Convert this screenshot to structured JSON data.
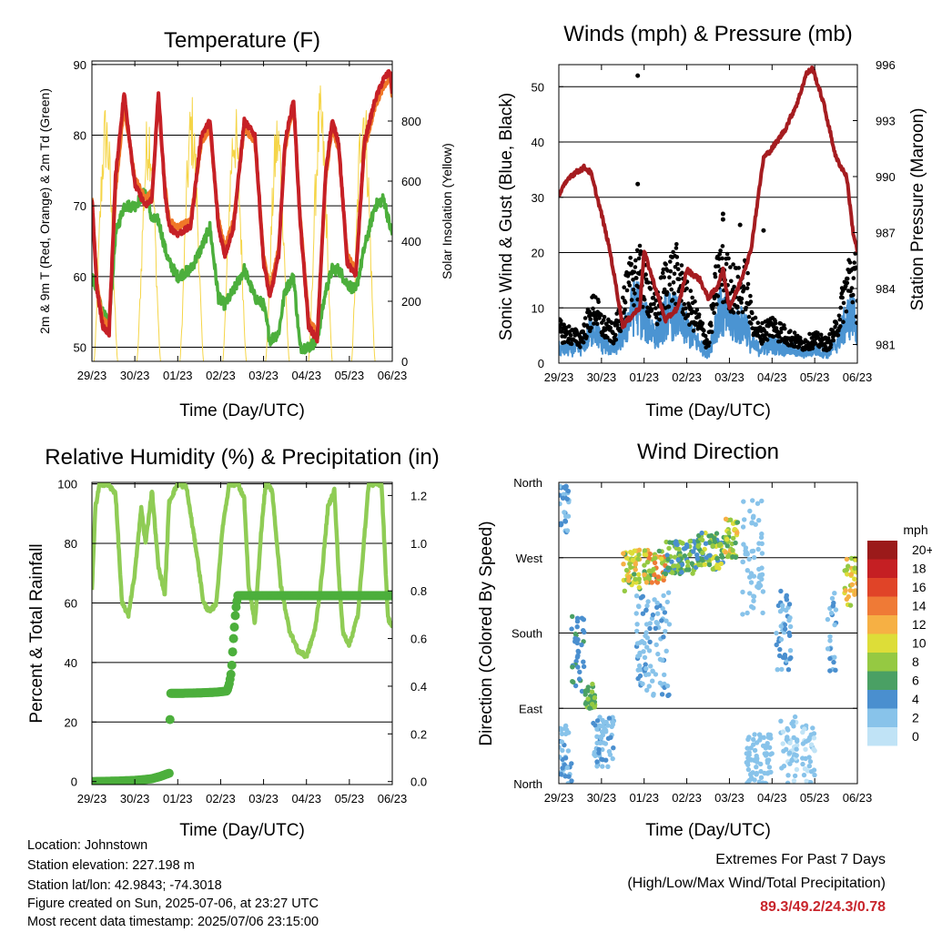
{
  "colors": {
    "red": "#c62026",
    "orange": "#f07828",
    "green": "#4caf3c",
    "light_green": "#8fcc55",
    "yellow": "#f5d548",
    "blue": "#4b94d2",
    "black": "#000000",
    "maroon": "#a51c20",
    "title_red": "#c8252c"
  },
  "x_ticks": [
    "29/23",
    "30/23",
    "01/23",
    "02/23",
    "03/23",
    "04/23",
    "05/23",
    "06/23"
  ],
  "chart_data": [
    {
      "id": "temperature",
      "type": "line",
      "title": "Temperature (F)",
      "xlabel": "Time (Day/UTC)",
      "ylabel": "2m & 9m T (Red, Orange) & 2m Td (Green)",
      "ylabel_right": "Solar Insolation (Yellow)",
      "ylim": [
        48,
        90.5
      ],
      "yticks": [
        50,
        60,
        70,
        80,
        90
      ],
      "ylim_right": [
        0,
        1000
      ],
      "yticks_right": [
        0,
        200,
        400,
        600,
        800
      ],
      "x": [
        0,
        0.12,
        0.25,
        0.4,
        0.55,
        0.75,
        1.0,
        1.25,
        1.4,
        1.55,
        1.7,
        1.8,
        2.0,
        2.3,
        2.55,
        2.75,
        2.95,
        3.1,
        3.3,
        3.55,
        3.8,
        4.0,
        4.15,
        4.35,
        4.5,
        4.7,
        4.85,
        5.05,
        5.25,
        5.45,
        5.6,
        5.75,
        5.95,
        6.15,
        6.35,
        6.6,
        6.8,
        6.95,
        7.0
      ],
      "series": [
        {
          "name": "2m T",
          "color": "red",
          "values": [
            71,
            58,
            53,
            52,
            74,
            86,
            73,
            70,
            71,
            86,
            72,
            67,
            66,
            67,
            80,
            82,
            67,
            63,
            67,
            82,
            80,
            62,
            57,
            63,
            79,
            85,
            68,
            53,
            51,
            75,
            82,
            79,
            62,
            60,
            79,
            85,
            88,
            89,
            86
          ]
        },
        {
          "name": "9m T",
          "color": "orange",
          "values": [
            71,
            59,
            54,
            53,
            72,
            84,
            74,
            71,
            72,
            85,
            73,
            68,
            67,
            68,
            79,
            81,
            68,
            64,
            68,
            81,
            79,
            63,
            58,
            64,
            78,
            84,
            69,
            54,
            52,
            74,
            81,
            78,
            63,
            61,
            78,
            84,
            87,
            88,
            85
          ]
        },
        {
          "name": "2m Td",
          "color": "green",
          "values": [
            60,
            58,
            55,
            53,
            66,
            70,
            70,
            72,
            68,
            68,
            64,
            62,
            60,
            61,
            64,
            67,
            57,
            56,
            58,
            61,
            57,
            56,
            51,
            52,
            58,
            60,
            50,
            50,
            51,
            58,
            61,
            61,
            59,
            58,
            64,
            70,
            71,
            67,
            66
          ]
        }
      ],
      "insolation": {
        "color": "yellow",
        "days": [
          0,
          1,
          2,
          3,
          4,
          5,
          6
        ],
        "peaks": [
          880,
          870,
          900,
          880,
          850,
          920,
          960
        ]
      }
    },
    {
      "id": "winds",
      "type": "scatter",
      "title": "Winds (mph) & Pressure (mb)",
      "xlabel": "Time (Day/UTC)",
      "ylabel": "Sonic Wind & Gust (Blue, Black)",
      "ylabel_right": "Station Pressure (Maroon)",
      "ylim": [
        0,
        54
      ],
      "yticks": [
        0,
        10,
        20,
        30,
        40,
        50
      ],
      "ylim_right": [
        980,
        996
      ],
      "yticks_right": [
        981,
        984,
        987,
        990,
        993,
        996
      ],
      "wind_series": {
        "name": "Sonic Wind",
        "color": "blue"
      },
      "gust_series": {
        "name": "Gust",
        "color": "black"
      },
      "wind_x": [
        0,
        0.5,
        0.85,
        1.0,
        1.3,
        1.5,
        1.8,
        2.0,
        2.3,
        2.5,
        2.75,
        3.0,
        3.3,
        3.5,
        3.75,
        4.0,
        4.2,
        4.4,
        4.5,
        4.7,
        5.0,
        5.3,
        5.5,
        5.7,
        6.0,
        6.3,
        6.5,
        6.8,
        6.95,
        7.0
      ],
      "wind": [
        3,
        3,
        8,
        4,
        3,
        6,
        13,
        9,
        6,
        10,
        10,
        7,
        4,
        2,
        11,
        9,
        8,
        8,
        4,
        3,
        4,
        3,
        3,
        2,
        3,
        2,
        4,
        10,
        10,
        6
      ],
      "gust": [
        7,
        5,
        12,
        8,
        6,
        12,
        20,
        17,
        11,
        17,
        19,
        13,
        8,
        4,
        20,
        17,
        15,
        17,
        10,
        6,
        8,
        6,
        5,
        4,
        5,
        4,
        7,
        18,
        18,
        12
      ],
      "gust_outliers": [
        [
          1.85,
          52
        ],
        [
          1.85,
          32.4
        ],
        [
          3.85,
          27
        ],
        [
          3.85,
          26
        ],
        [
          4.25,
          25
        ],
        [
          4.8,
          24
        ]
      ],
      "pressure_x": [
        0,
        0.25,
        0.6,
        0.75,
        1.0,
        1.2,
        1.5,
        1.9,
        2.0,
        2.2,
        2.5,
        2.8,
        3.0,
        3.3,
        3.5,
        3.7,
        3.85,
        4.0,
        4.2,
        4.5,
        4.8,
        5.0,
        5.3,
        5.6,
        5.8,
        5.95,
        6.2,
        6.5,
        6.75,
        6.9,
        7.0
      ],
      "pressure": [
        989,
        990,
        990.5,
        990.2,
        988,
        986,
        982,
        983,
        986,
        984.5,
        982.3,
        983,
        985,
        984.5,
        983.5,
        984,
        985,
        983,
        984,
        986,
        991,
        991.5,
        992.5,
        994,
        995.5,
        995.8,
        994,
        991,
        990,
        987,
        986
      ]
    },
    {
      "id": "humidity",
      "type": "line",
      "title": "Relative Humidity (%) & Precipitation (in)",
      "xlabel": "Time (Day/UTC)",
      "ylabel": "Percent & Total Rainfall",
      "ylim": [
        -1,
        100.5
      ],
      "yticks": [
        0,
        20,
        40,
        60,
        80,
        100
      ],
      "ylim_right": [
        -0.0125,
        1.255
      ],
      "yticks_right": [
        "0.0",
        "0.2",
        "0.4",
        "0.6",
        "0.8",
        "1.0",
        "1.2"
      ],
      "rh": {
        "name": "Relative Humidity",
        "color": "light_green",
        "x": [
          0,
          0.08,
          0.18,
          0.35,
          0.55,
          0.7,
          0.85,
          1.0,
          1.15,
          1.25,
          1.4,
          1.55,
          1.7,
          1.8,
          2.0,
          2.2,
          2.45,
          2.6,
          2.75,
          2.9,
          3.05,
          3.2,
          3.4,
          3.55,
          3.65,
          3.8,
          3.95,
          4.05,
          4.2,
          4.4,
          4.6,
          4.8,
          5.0,
          5.2,
          5.35,
          5.5,
          5.65,
          5.75,
          5.85,
          6.0,
          6.2,
          6.45,
          6.6,
          6.75,
          6.9,
          7.0
        ],
        "values": [
          64,
          92,
          100,
          100,
          97,
          60,
          56,
          70,
          92,
          80,
          98,
          72,
          63,
          94,
          100,
          99,
          76,
          60,
          57,
          60,
          86,
          100,
          100,
          95,
          66,
          53,
          85,
          100,
          98,
          66,
          51,
          44,
          42,
          51,
          68,
          92,
          98,
          70,
          50,
          46,
          56,
          100,
          100,
          100,
          55,
          52
        ]
      },
      "precip": {
        "name": "Total Precipitation",
        "color": "green",
        "x": [
          0,
          0.6,
          1.0,
          1.2,
          1.4,
          1.6,
          1.72,
          1.8,
          1.82,
          1.84,
          2.0,
          2.5,
          2.9,
          3.15,
          3.2,
          3.25,
          3.3,
          3.35,
          3.4,
          4.0,
          5.0,
          6.0,
          7.0
        ],
        "values": [
          0,
          0.002,
          0.005,
          0.008,
          0.012,
          0.022,
          0.03,
          0.035,
          0.26,
          0.37,
          0.37,
          0.372,
          0.375,
          0.38,
          0.41,
          0.46,
          0.6,
          0.72,
          0.78,
          0.78,
          0.78,
          0.78,
          0.78
        ]
      }
    },
    {
      "id": "direction",
      "type": "scatter",
      "title": "Wind Direction",
      "xlabel": "Time (Day/UTC)",
      "ylabel": "Direction (Colored By Speed)",
      "ylim": [
        0,
        360
      ],
      "ytick_values": [
        0,
        90,
        180,
        270,
        360
      ],
      "ytick_labels": [
        "North",
        "East",
        "South",
        "West",
        "North"
      ],
      "colorbar": {
        "title": "mph",
        "labels": [
          "0",
          "2",
          "4",
          "6",
          "8",
          "10",
          "12",
          "14",
          "16",
          "18",
          "20+"
        ],
        "colors": [
          "#c0e3f6",
          "#88c3ea",
          "#4a8fcf",
          "#4aa064",
          "#95c942",
          "#dddd38",
          "#f6b044",
          "#ef7a36",
          "#e04428",
          "#c51f23",
          "#9b1a1a"
        ]
      },
      "clusters": [
        {
          "x": [
            0,
            0.25
          ],
          "dir": [
            300,
            360
          ],
          "speed": [
            1,
            5
          ]
        },
        {
          "x": [
            0,
            0.3
          ],
          "dir": [
            0,
            70
          ],
          "speed": [
            1,
            4
          ]
        },
        {
          "x": [
            0.3,
            0.6
          ],
          "dir": [
            110,
            200
          ],
          "speed": [
            3,
            6
          ]
        },
        {
          "x": [
            0.6,
            0.85
          ],
          "dir": [
            90,
            120
          ],
          "speed": [
            5,
            9
          ]
        },
        {
          "x": [
            0.8,
            1.3
          ],
          "dir": [
            20,
            80
          ],
          "speed": [
            1,
            4
          ]
        },
        {
          "x": [
            1.5,
            1.9
          ],
          "dir": [
            230,
            280
          ],
          "speed": [
            6,
            13
          ]
        },
        {
          "x": [
            2.0,
            2.5
          ],
          "dir": [
            240,
            280
          ],
          "speed": [
            6,
            15
          ]
        },
        {
          "x": [
            2.5,
            3.2
          ],
          "dir": [
            250,
            290
          ],
          "speed": [
            3,
            9
          ]
        },
        {
          "x": [
            3.2,
            3.9
          ],
          "dir": [
            255,
            300
          ],
          "speed": [
            4,
            11
          ]
        },
        {
          "x": [
            3.9,
            4.2
          ],
          "dir": [
            270,
            320
          ],
          "speed": [
            6,
            12
          ]
        },
        {
          "x": [
            1.8,
            2.6
          ],
          "dir": [
            100,
            230
          ],
          "speed": [
            1,
            4
          ]
        },
        {
          "x": [
            4.3,
            4.8
          ],
          "dir": [
            200,
            340
          ],
          "speed": [
            1,
            3
          ]
        },
        {
          "x": [
            5.1,
            5.45
          ],
          "dir": [
            130,
            230
          ],
          "speed": [
            2,
            5
          ]
        },
        {
          "x": [
            5.2,
            5.6
          ],
          "dir": [
            0,
            80
          ],
          "speed": [
            0,
            3
          ]
        },
        {
          "x": [
            5.7,
            6.0
          ],
          "dir": [
            0,
            70
          ],
          "speed": [
            0,
            3
          ]
        },
        {
          "x": [
            6.7,
            7.0
          ],
          "dir": [
            210,
            270
          ],
          "speed": [
            7,
            13
          ]
        },
        {
          "x": [
            6.3,
            6.5
          ],
          "dir": [
            130,
            230
          ],
          "speed": [
            1,
            4
          ]
        },
        {
          "x": [
            4.4,
            5.0
          ],
          "dir": [
            0,
            60
          ],
          "speed": [
            1,
            3
          ]
        }
      ]
    }
  ],
  "info": {
    "location": "Location: Johnstown",
    "elevation": "Station elevation: 227.198 m",
    "latlon": "Station lat/lon: 42.9843; -74.3018",
    "created": "Figure created on Sun, 2025-07-06, at 23:27 UTC",
    "recent": "Most recent data timestamp: 2025/07/06 23:15:00"
  },
  "extremes": {
    "title": "Extremes For Past 7 Days",
    "subtitle": "(High/Low/Max Wind/Total Precipitation)",
    "values": "89.3/49.2/24.3/0.78"
  }
}
